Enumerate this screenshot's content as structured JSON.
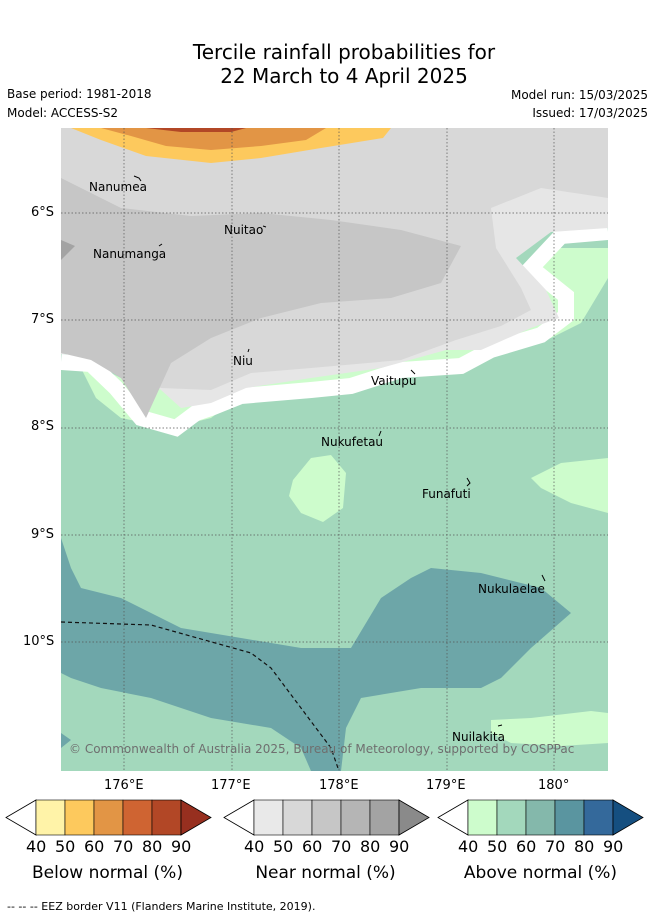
{
  "header": {
    "title_line1": "Tercile rainfall probabilities for",
    "title_line2": "22 March to 4 April 2025",
    "base_period": "Base period: 1981-2018",
    "model": "Model: ACCESS-S2",
    "model_run": "Model run: 15/03/2025",
    "issued": "Issued: 17/03/2025"
  },
  "map": {
    "lat_labels": [
      "6°S",
      "7°S",
      "8°S",
      "9°S",
      "10°S"
    ],
    "lon_labels": [
      "176°E",
      "177°E",
      "178°E",
      "179°E",
      "180°"
    ],
    "places": [
      "Nanumea",
      "Nuitao",
      "Nanumanga",
      "Niu",
      "Vaitupu",
      "Nukufetau",
      "Funafuti",
      "Nukulaelae",
      "Nuilakita"
    ],
    "copyright": "© Commonwealth of Australia 2025, Bureau of Meteorology, supported by COSPPac"
  },
  "legends": [
    {
      "title": "Below normal (%)",
      "colors": [
        "#fff3a8",
        "#fdc95d",
        "#e29545",
        "#cf6432",
        "#b24726",
        "#972f1f"
      ]
    },
    {
      "title": "Near normal (%)",
      "colors": [
        "#e9e9e9",
        "#d8d8d8",
        "#c6c6c6",
        "#b5b5b5",
        "#a3a3a3",
        "#8a8a8a"
      ]
    },
    {
      "title": "Above normal (%)",
      "colors": [
        "#cdfccc",
        "#a3d8bc",
        "#84b8ab",
        "#5a95a0",
        "#34699b",
        "#154f80"
      ]
    }
  ],
  "legend_ticks": [
    "40",
    "50",
    "60",
    "70",
    "80",
    "90"
  ],
  "footnote": "--  --  -- EEZ border V11 (Flanders Marine Institute, 2019)."
}
